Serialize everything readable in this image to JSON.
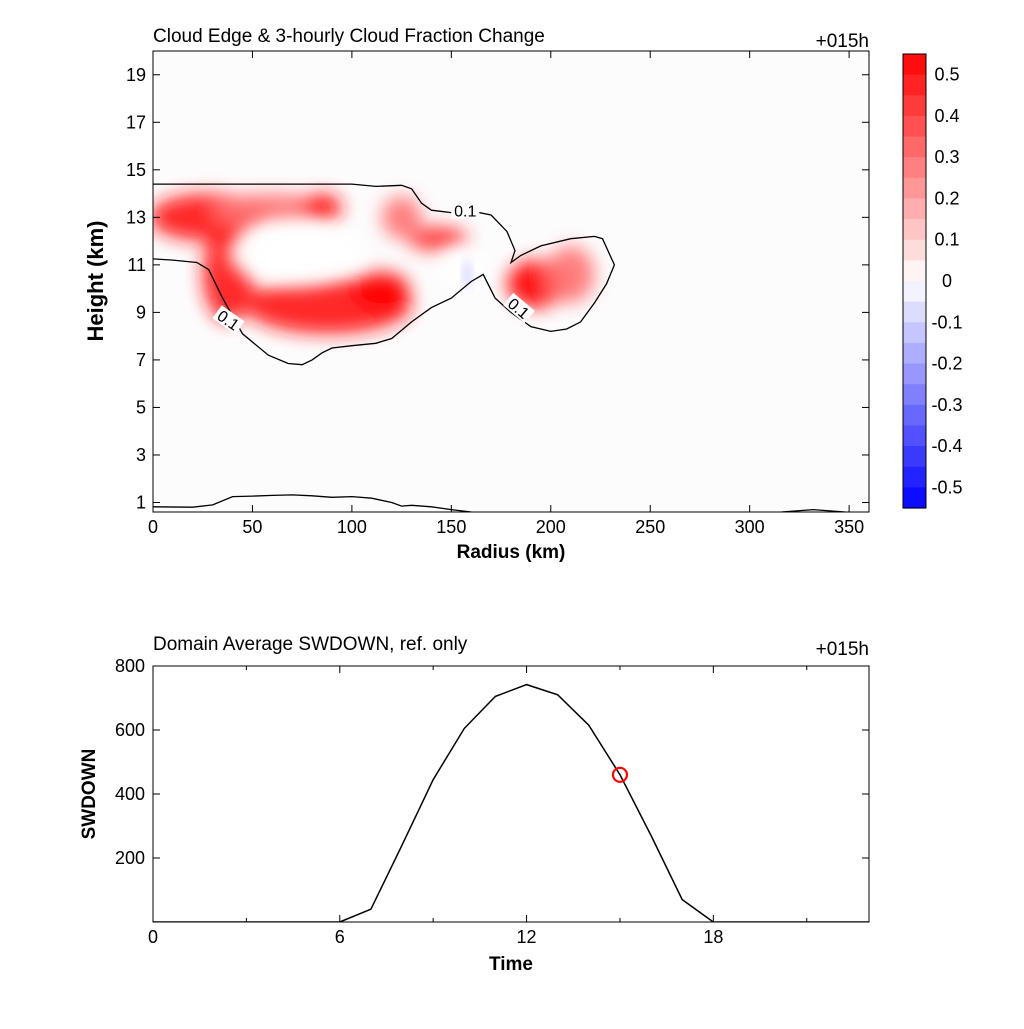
{
  "chart_data": [
    {
      "type": "heatmap",
      "title": "Cloud Edge & 3-hourly Cloud Fraction Change",
      "time_label": "+015h",
      "xlabel": "Radius (km)",
      "ylabel": "Height (km)",
      "xlim": [
        0,
        360
      ],
      "ylim": [
        0.6,
        20
      ],
      "x_ticks": [
        0,
        50,
        100,
        150,
        200,
        250,
        300,
        350
      ],
      "y_ticks": [
        1,
        3,
        5,
        7,
        9,
        11,
        13,
        15,
        17,
        19
      ],
      "colorbar": {
        "range": [
          -0.55,
          0.55
        ],
        "labels": [
          "0.5",
          "0.4",
          "0.3",
          "0.2",
          "0.1",
          "0",
          "-0.1",
          "-0.2",
          "-0.3",
          "-0.4",
          "-0.5"
        ],
        "low_color": "#0000ff",
        "high_color": "#ff0000"
      },
      "contour_level": "0.1",
      "contour_labels": [
        "0.1",
        "0.1",
        "0.1"
      ],
      "contour_main": [
        [
          0,
          14.4
        ],
        [
          100,
          14.4
        ],
        [
          112,
          14.3
        ],
        [
          125,
          14.35
        ],
        [
          130,
          14.2
        ],
        [
          135,
          13.6
        ],
        [
          140,
          13.3
        ],
        [
          150,
          13.2
        ],
        [
          158,
          13.3
        ],
        [
          170,
          13.1
        ],
        [
          178,
          12.4
        ],
        [
          182,
          11.6
        ],
        [
          180,
          11.1
        ],
        [
          185,
          11.4
        ],
        [
          195,
          11.8
        ],
        [
          210,
          12.1
        ],
        [
          222,
          12.2
        ],
        [
          226,
          12.1
        ],
        [
          232,
          11.0
        ],
        [
          228,
          10.2
        ],
        [
          222,
          9.4
        ],
        [
          215,
          8.6
        ],
        [
          208,
          8.3
        ],
        [
          200,
          8.2
        ],
        [
          190,
          8.4
        ],
        [
          180,
          9.0
        ],
        [
          172,
          9.6
        ],
        [
          166,
          10.6
        ],
        [
          160,
          10.3
        ],
        [
          150,
          9.6
        ],
        [
          140,
          9.2
        ],
        [
          130,
          8.6
        ],
        [
          120,
          7.9
        ],
        [
          112,
          7.7
        ],
        [
          100,
          7.6
        ],
        [
          90,
          7.5
        ],
        [
          85,
          7.3
        ],
        [
          80,
          7.0
        ],
        [
          75,
          6.8
        ],
        [
          68,
          6.85
        ],
        [
          58,
          7.2
        ],
        [
          45,
          8.1
        ],
        [
          35,
          9.6
        ],
        [
          28,
          10.8
        ],
        [
          22,
          11.1
        ],
        [
          10,
          11.2
        ],
        [
          0,
          11.25
        ]
      ],
      "contour_bottom": [
        [
          0,
          0.82
        ],
        [
          20,
          0.8
        ],
        [
          30,
          0.9
        ],
        [
          40,
          1.25
        ],
        [
          50,
          1.27
        ],
        [
          60,
          1.3
        ],
        [
          70,
          1.32
        ],
        [
          80,
          1.28
        ],
        [
          90,
          1.22
        ],
        [
          100,
          1.25
        ],
        [
          110,
          1.18
        ],
        [
          120,
          1.0
        ],
        [
          125,
          0.85
        ],
        [
          130,
          0.88
        ],
        [
          140,
          0.82
        ],
        [
          150,
          0.7
        ],
        [
          160,
          0.6
        ]
      ],
      "contour_right": [
        [
          316,
          0.6
        ],
        [
          332,
          0.7
        ],
        [
          348,
          0.6
        ]
      ],
      "positive_regions": [
        {
          "cx": 28,
          "cy": 13.0,
          "rx": 30,
          "ry": 1.0,
          "value": 0.5
        },
        {
          "cx": 60,
          "cy": 13.3,
          "rx": 30,
          "ry": 0.7,
          "value": 0.3
        },
        {
          "cx": 85,
          "cy": 13.4,
          "rx": 10,
          "ry": 0.6,
          "value": 0.5
        },
        {
          "cx": 38,
          "cy": 10.6,
          "rx": 13,
          "ry": 2.0,
          "value": 0.5
        },
        {
          "cx": 88,
          "cy": 9.3,
          "rx": 42,
          "ry": 1.2,
          "value": 0.5
        },
        {
          "cx": 115,
          "cy": 9.9,
          "rx": 14,
          "ry": 0.8,
          "value": 0.55
        },
        {
          "cx": 143,
          "cy": 12.1,
          "rx": 15,
          "ry": 0.5,
          "value": 0.45
        },
        {
          "cx": 125,
          "cy": 13.0,
          "rx": 10,
          "ry": 0.9,
          "value": 0.3
        },
        {
          "cx": 193,
          "cy": 10.2,
          "rx": 15,
          "ry": 1.0,
          "value": 0.55
        },
        {
          "cx": 210,
          "cy": 10.6,
          "rx": 12,
          "ry": 1.2,
          "value": 0.3
        }
      ],
      "white_regions": [
        {
          "cx": 72,
          "cy": 11.5,
          "rx": 34,
          "ry": 1.4
        },
        {
          "cx": 155,
          "cy": 10.9,
          "rx": 12,
          "ry": 0.9
        }
      ],
      "negative_regions": [
        {
          "cx": 158,
          "cy": 10.6,
          "rx": 2,
          "ry": 0.6,
          "value": -0.1
        }
      ]
    },
    {
      "type": "line",
      "title": "Domain Average SWDOWN, ref. only",
      "time_label": "+015h",
      "xlabel": "Time",
      "ylabel": "SWDOWN",
      "xlim": [
        0,
        23
      ],
      "ylim": [
        0,
        800
      ],
      "x_ticks": [
        0,
        6,
        12,
        18
      ],
      "y_ticks": [
        200,
        400,
        600,
        800
      ],
      "series": [
        {
          "x": [
            0,
            1,
            2,
            3,
            4,
            5,
            6,
            7,
            8,
            9,
            10,
            11,
            12,
            13,
            14,
            15,
            16,
            17,
            18,
            19,
            20,
            21,
            22,
            23
          ],
          "values": [
            0,
            0,
            0,
            0,
            0,
            0,
            0,
            40,
            240,
            445,
            605,
            705,
            742,
            710,
            615,
            460,
            270,
            70,
            0,
            0,
            0,
            0,
            0,
            0
          ]
        }
      ],
      "marker": {
        "x": 15,
        "y": 460,
        "color": "#ff0000"
      }
    }
  ]
}
